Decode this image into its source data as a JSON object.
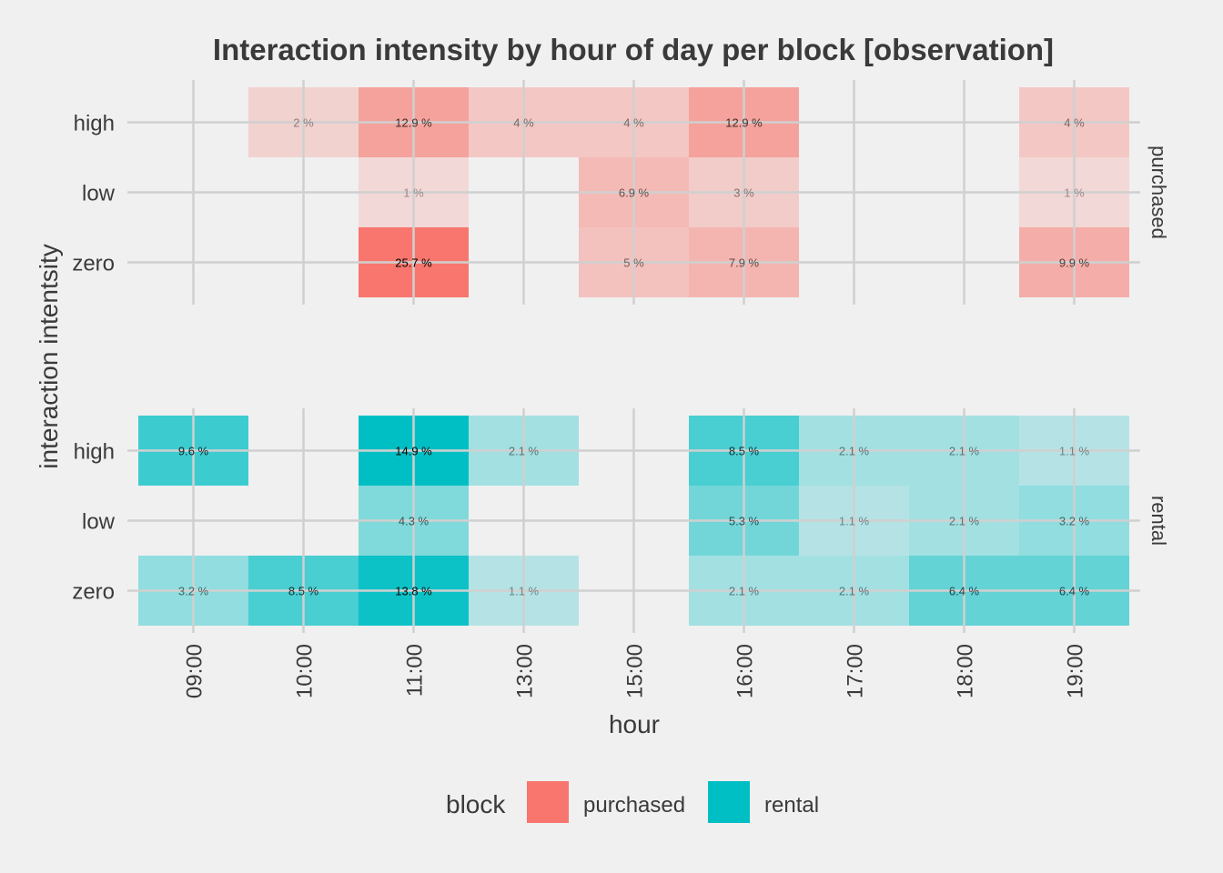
{
  "chart_data": {
    "type": "heatmap",
    "title": "Interaction intensity by hour of day per block   [observation]",
    "xlabel": "hour",
    "ylabel": "interaction intentsity",
    "x_categories": [
      "09:00",
      "10:00",
      "11:00",
      "13:00",
      "15:00",
      "16:00",
      "17:00",
      "18:00",
      "19:00"
    ],
    "y_categories": [
      "high",
      "low",
      "zero"
    ],
    "legend": {
      "title": "block",
      "position": "bottom",
      "items": [
        {
          "label": "purchased",
          "color": "#F8766D"
        },
        {
          "label": "rental",
          "color": "#00BFC4"
        }
      ]
    },
    "grid": true,
    "panels": [
      {
        "name": "purchased",
        "color": "#F8766D",
        "cells": [
          {
            "hour": "10:00",
            "intensity": "high",
            "value": 2,
            "label": "2 %"
          },
          {
            "hour": "11:00",
            "intensity": "high",
            "value": 12.9,
            "label": "12.9 %"
          },
          {
            "hour": "13:00",
            "intensity": "high",
            "value": 4,
            "label": "4 %"
          },
          {
            "hour": "15:00",
            "intensity": "high",
            "value": 4,
            "label": "4 %"
          },
          {
            "hour": "16:00",
            "intensity": "high",
            "value": 12.9,
            "label": "12.9 %"
          },
          {
            "hour": "19:00",
            "intensity": "high",
            "value": 4,
            "label": "4 %"
          },
          {
            "hour": "11:00",
            "intensity": "low",
            "value": 1,
            "label": "1 %"
          },
          {
            "hour": "15:00",
            "intensity": "low",
            "value": 6.9,
            "label": "6.9 %"
          },
          {
            "hour": "16:00",
            "intensity": "low",
            "value": 3,
            "label": "3 %"
          },
          {
            "hour": "19:00",
            "intensity": "low",
            "value": 1,
            "label": "1 %"
          },
          {
            "hour": "11:00",
            "intensity": "zero",
            "value": 25.7,
            "label": "25.7 %"
          },
          {
            "hour": "15:00",
            "intensity": "zero",
            "value": 5,
            "label": "5 %"
          },
          {
            "hour": "16:00",
            "intensity": "zero",
            "value": 7.9,
            "label": "7.9 %"
          },
          {
            "hour": "19:00",
            "intensity": "zero",
            "value": 9.9,
            "label": "9.9 %"
          }
        ]
      },
      {
        "name": "rental",
        "color": "#00BFC4",
        "cells": [
          {
            "hour": "09:00",
            "intensity": "high",
            "value": 9.6,
            "label": "9.6 %"
          },
          {
            "hour": "11:00",
            "intensity": "high",
            "value": 14.9,
            "label": "14.9 %"
          },
          {
            "hour": "13:00",
            "intensity": "high",
            "value": 2.1,
            "label": "2.1 %"
          },
          {
            "hour": "16:00",
            "intensity": "high",
            "value": 8.5,
            "label": "8.5 %"
          },
          {
            "hour": "17:00",
            "intensity": "high",
            "value": 2.1,
            "label": "2.1 %"
          },
          {
            "hour": "18:00",
            "intensity": "high",
            "value": 2.1,
            "label": "2.1 %"
          },
          {
            "hour": "19:00",
            "intensity": "high",
            "value": 1.1,
            "label": "1.1 %"
          },
          {
            "hour": "11:00",
            "intensity": "low",
            "value": 4.3,
            "label": "4.3 %"
          },
          {
            "hour": "16:00",
            "intensity": "low",
            "value": 5.3,
            "label": "5.3 %"
          },
          {
            "hour": "17:00",
            "intensity": "low",
            "value": 1.1,
            "label": "1.1 %"
          },
          {
            "hour": "18:00",
            "intensity": "low",
            "value": 2.1,
            "label": "2.1 %"
          },
          {
            "hour": "19:00",
            "intensity": "low",
            "value": 3.2,
            "label": "3.2 %"
          },
          {
            "hour": "09:00",
            "intensity": "zero",
            "value": 3.2,
            "label": "3.2 %"
          },
          {
            "hour": "10:00",
            "intensity": "zero",
            "value": 8.5,
            "label": "8.5 %"
          },
          {
            "hour": "11:00",
            "intensity": "zero",
            "value": 13.8,
            "label": "13.8 %"
          },
          {
            "hour": "13:00",
            "intensity": "zero",
            "value": 1.1,
            "label": "1.1 %"
          },
          {
            "hour": "16:00",
            "intensity": "zero",
            "value": 2.1,
            "label": "2.1 %"
          },
          {
            "hour": "17:00",
            "intensity": "zero",
            "value": 2.1,
            "label": "2.1 %"
          },
          {
            "hour": "18:00",
            "intensity": "zero",
            "value": 6.4,
            "label": "6.4 %"
          },
          {
            "hour": "19:00",
            "intensity": "zero",
            "value": 6.4,
            "label": "6.4 %"
          }
        ]
      }
    ]
  }
}
